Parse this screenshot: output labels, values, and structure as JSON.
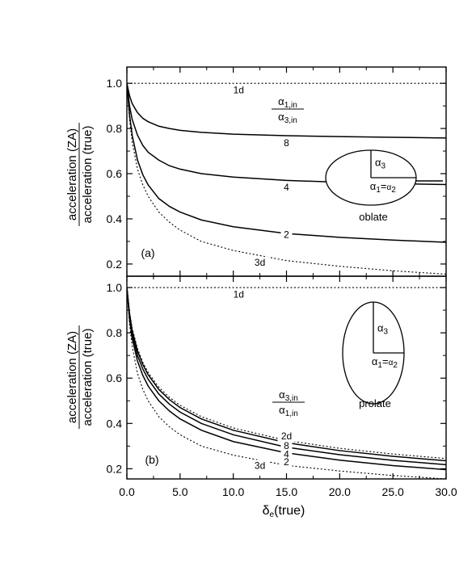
{
  "chart_data": [
    {
      "type": "line",
      "panel_label": "(a)",
      "shape_label": "oblate",
      "ratio_label": {
        "num_base": "α",
        "num_sub": "1,in",
        "den_base": "α",
        "den_sub": "3,in"
      },
      "ellipse_axes": {
        "vertical": {
          "base": "α",
          "sub": "3"
        },
        "horizontal": {
          "b1": "α",
          "s1": "1",
          "eq": "=",
          "b2": "α",
          "s2": "2"
        }
      },
      "xlim": [
        0,
        30
      ],
      "ylim": [
        0.15,
        1.05
      ],
      "xticks": [
        0,
        5,
        10,
        15,
        20,
        25,
        30
      ],
      "yticks": [
        0.2,
        0.4,
        0.6,
        0.8,
        1.0
      ],
      "ytick_labels": [
        "0.2",
        "0.4",
        "0.6",
        "0.8",
        "1.0"
      ],
      "ylabel": {
        "num": "acceleration (ZA)",
        "den": "acceleration (true)"
      },
      "series": [
        {
          "name": "1d",
          "style": "dotted",
          "x": [
            0,
            2,
            5,
            10,
            15,
            20,
            25,
            30
          ],
          "y": [
            1.0,
            1.0,
            1.0,
            1.0,
            1.0,
            1.0,
            1.0,
            1.0
          ]
        },
        {
          "name": "8",
          "style": "solid",
          "x": [
            0,
            0.25,
            0.5,
            1,
            1.5,
            2,
            3,
            4,
            5,
            7,
            10,
            15,
            20,
            25,
            30
          ],
          "y": [
            1.0,
            0.945,
            0.91,
            0.87,
            0.845,
            0.83,
            0.81,
            0.8,
            0.792,
            0.783,
            0.775,
            0.768,
            0.764,
            0.761,
            0.758
          ]
        },
        {
          "name": "4",
          "style": "solid",
          "x": [
            0,
            0.25,
            0.5,
            1,
            1.5,
            2,
            3,
            4,
            5,
            7,
            10,
            15,
            20,
            25,
            30
          ],
          "y": [
            1.0,
            0.9,
            0.84,
            0.77,
            0.725,
            0.695,
            0.66,
            0.635,
            0.62,
            0.6,
            0.585,
            0.57,
            0.562,
            0.556,
            0.552
          ]
        },
        {
          "name": "2",
          "style": "solid",
          "x": [
            0,
            0.25,
            0.5,
            1,
            1.5,
            2,
            3,
            4,
            5,
            7,
            10,
            15,
            20,
            25,
            30
          ],
          "y": [
            1.0,
            0.86,
            0.77,
            0.66,
            0.595,
            0.55,
            0.49,
            0.455,
            0.43,
            0.395,
            0.365,
            0.335,
            0.318,
            0.306,
            0.296
          ]
        },
        {
          "name": "3d",
          "style": "dotted",
          "x": [
            0,
            0.25,
            0.5,
            1,
            1.5,
            2,
            3,
            4,
            5,
            7,
            10,
            15,
            20,
            25,
            30
          ],
          "y": [
            1.0,
            0.84,
            0.74,
            0.62,
            0.55,
            0.5,
            0.43,
            0.385,
            0.35,
            0.3,
            0.26,
            0.215,
            0.19,
            0.17,
            0.155
          ]
        }
      ],
      "curve_labels": [
        {
          "text": "1d",
          "x": 10.5,
          "y": 0.955
        },
        {
          "text": "8",
          "x": 15.0,
          "y": 0.722
        },
        {
          "text": "4",
          "x": 15.0,
          "y": 0.525
        },
        {
          "text": "2",
          "x": 15.0,
          "y": 0.315
        },
        {
          "text": "3d",
          "x": 12.5,
          "y": 0.193
        }
      ]
    },
    {
      "type": "line",
      "panel_label": "(b)",
      "shape_label": "prolate",
      "ratio_label": {
        "num_base": "α",
        "num_sub": "3,in",
        "den_base": "α",
        "den_sub": "1,in"
      },
      "ellipse_axes": {
        "vertical": {
          "base": "α",
          "sub": "3"
        },
        "horizontal": {
          "b1": "α",
          "s1": "1",
          "eq": "=",
          "b2": "α",
          "s2": "2"
        }
      },
      "xlim": [
        0,
        30
      ],
      "ylim": [
        0.15,
        1.05
      ],
      "xticks": [
        0,
        5,
        10,
        15,
        20,
        25,
        30
      ],
      "xtick_labels": [
        "0.0",
        "5.0",
        "10.0",
        "15.0",
        "20.0",
        "25.0",
        "30.0"
      ],
      "yticks": [
        0.2,
        0.4,
        0.6,
        0.8,
        1.0
      ],
      "ytick_labels": [
        "0.2",
        "0.4",
        "0.6",
        "0.8",
        "1.0"
      ],
      "ylabel": {
        "num": "acceleration (ZA)",
        "den": "acceleration (true)"
      },
      "xlabel": {
        "base": "δ",
        "sub": "e",
        "rest": "(true)"
      },
      "series": [
        {
          "name": "1d",
          "style": "dotted",
          "x": [
            0,
            2,
            5,
            10,
            15,
            20,
            25,
            30
          ],
          "y": [
            1.0,
            1.0,
            1.0,
            1.0,
            1.0,
            1.0,
            1.0,
            1.0
          ]
        },
        {
          "name": "2d",
          "style": "dotted",
          "x": [
            0,
            0.25,
            0.5,
            1,
            1.5,
            2,
            3,
            4,
            5,
            7,
            10,
            15,
            20,
            25,
            30
          ],
          "y": [
            1.0,
            0.89,
            0.82,
            0.73,
            0.67,
            0.625,
            0.56,
            0.515,
            0.48,
            0.43,
            0.38,
            0.325,
            0.29,
            0.265,
            0.245
          ]
        },
        {
          "name": "8",
          "style": "solid",
          "x": [
            0,
            0.25,
            0.5,
            1,
            1.5,
            2,
            3,
            4,
            5,
            7,
            10,
            15,
            20,
            25,
            30
          ],
          "y": [
            1.0,
            0.885,
            0.81,
            0.72,
            0.66,
            0.615,
            0.55,
            0.505,
            0.47,
            0.42,
            0.37,
            0.315,
            0.28,
            0.255,
            0.235
          ]
        },
        {
          "name": "4",
          "style": "solid",
          "x": [
            0,
            0.25,
            0.5,
            1,
            1.5,
            2,
            3,
            4,
            5,
            7,
            10,
            15,
            20,
            25,
            30
          ],
          "y": [
            1.0,
            0.875,
            0.795,
            0.7,
            0.64,
            0.595,
            0.53,
            0.485,
            0.45,
            0.4,
            0.35,
            0.295,
            0.262,
            0.237,
            0.218
          ]
        },
        {
          "name": "2",
          "style": "solid",
          "x": [
            0,
            0.25,
            0.5,
            1,
            1.5,
            2,
            3,
            4,
            5,
            7,
            10,
            15,
            20,
            25,
            30
          ],
          "y": [
            1.0,
            0.86,
            0.775,
            0.675,
            0.612,
            0.565,
            0.5,
            0.455,
            0.42,
            0.37,
            0.32,
            0.27,
            0.238,
            0.214,
            0.196
          ]
        },
        {
          "name": "3d",
          "style": "dotted",
          "x": [
            0,
            0.25,
            0.5,
            1,
            1.5,
            2,
            3,
            4,
            5,
            7,
            10,
            15,
            20,
            25,
            30
          ],
          "y": [
            1.0,
            0.84,
            0.74,
            0.62,
            0.55,
            0.5,
            0.43,
            0.385,
            0.35,
            0.3,
            0.26,
            0.215,
            0.19,
            0.17,
            0.155
          ]
        }
      ],
      "curve_labels": [
        {
          "text": "1d",
          "x": 10.5,
          "y": 0.955
        },
        {
          "text": "2d",
          "x": 15.0,
          "y": 0.33
        },
        {
          "text": "8",
          "x": 15.0,
          "y": 0.287
        },
        {
          "text": "4",
          "x": 15.0,
          "y": 0.25
        },
        {
          "text": "2",
          "x": 15.0,
          "y": 0.215
        },
        {
          "text": "3d",
          "x": 12.5,
          "y": 0.2
        }
      ]
    }
  ]
}
